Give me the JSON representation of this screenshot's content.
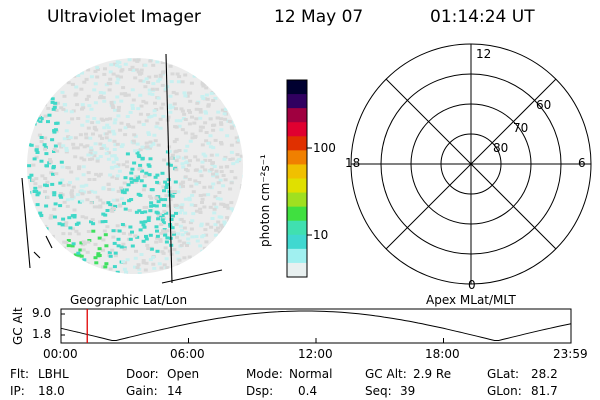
{
  "header": {
    "title": "Ultraviolet Imager",
    "date": "12 May 07",
    "time": "01:14:24 UT"
  },
  "image_panel": {
    "label": "Geographic Lat/Lon",
    "colors": {
      "background_speckle": "#d8d8d8",
      "low": "#c8f0f0",
      "mid": "#40d8c8",
      "high": "#40e060"
    }
  },
  "colorbar": {
    "axis_label": "photon cm⁻²s⁻¹",
    "ticks": [
      "100",
      "10"
    ],
    "colors": [
      "#000030",
      "#300060",
      "#a00040",
      "#e00030",
      "#e03000",
      "#f08000",
      "#f0c000",
      "#e0e000",
      "#a0e020",
      "#40e040",
      "#40e0b0",
      "#40d8d0",
      "#a0f0f0",
      "#e8f0f0"
    ]
  },
  "polar_panel": {
    "label": "Apex MLat/MLT",
    "mlt_labels": {
      "top": "12",
      "left": "18",
      "right": "6",
      "bottom": "0"
    },
    "lat_labels": [
      "60",
      "70",
      "80"
    ]
  },
  "altitude_plot": {
    "ylabel": "GC Alt",
    "yticks": [
      "9.0",
      "1.8"
    ],
    "xticks": [
      "00:00",
      "06:00",
      "12:00",
      "18:00",
      "23:59"
    ],
    "current_time": "01:14",
    "marker_color": "#e00000"
  },
  "status": {
    "flt_label": "Flt:",
    "flt_value": "LBHL",
    "ip_label": "IP:",
    "ip_value": "18.0",
    "door_label": "Door:",
    "door_value": "Open",
    "gain_label": "Gain:",
    "gain_value": "14",
    "mode_label": "Mode:",
    "mode_value": "Normal",
    "dsp_label": "Dsp:",
    "dsp_value": "0.4",
    "gcalt_label": "GC Alt:",
    "gcalt_value": "2.9 Re",
    "seq_label": "Seq:",
    "seq_value": "39",
    "glat_label": "GLat:",
    "glat_value": "28.2",
    "glon_label": "GLon:",
    "glon_value": "81.7"
  }
}
